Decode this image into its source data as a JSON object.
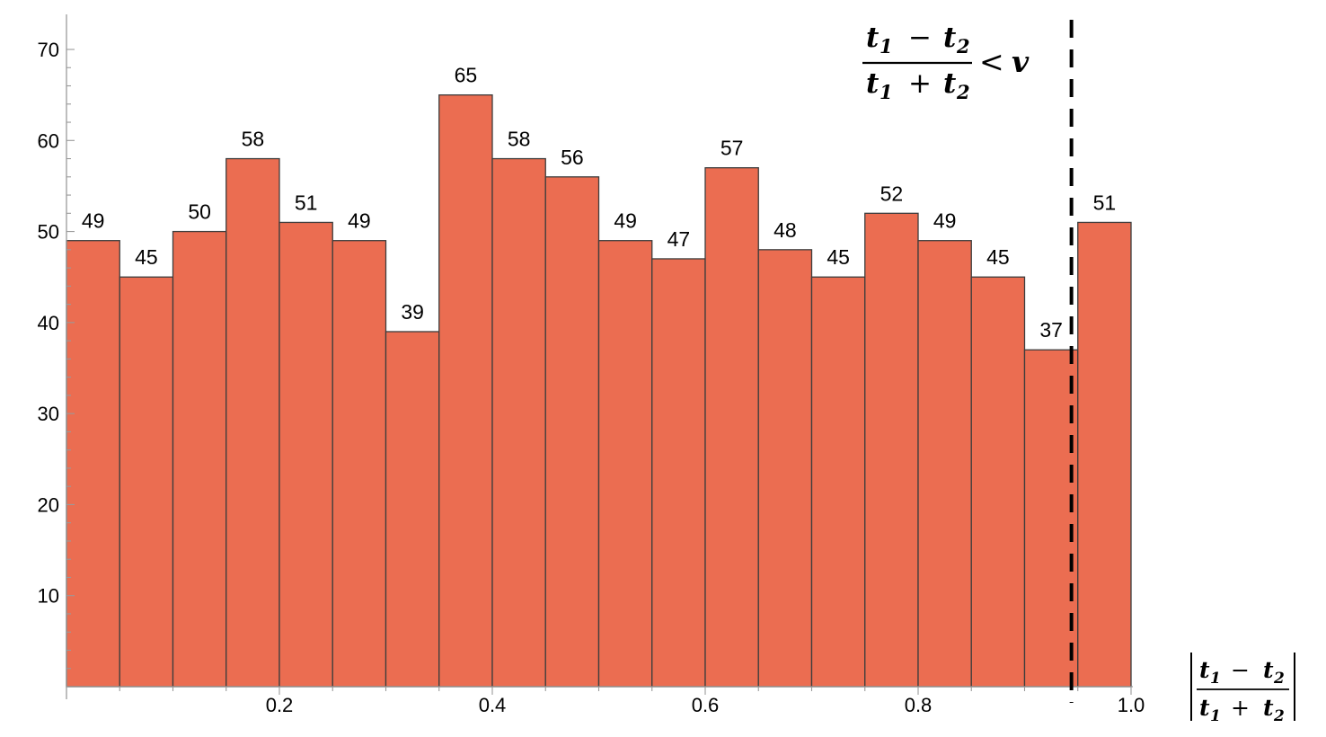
{
  "chart_data": {
    "type": "bar",
    "bins": [
      {
        "start": 0.0,
        "end": 0.05,
        "value": 49
      },
      {
        "start": 0.05,
        "end": 0.1,
        "value": 45
      },
      {
        "start": 0.1,
        "end": 0.15,
        "value": 50
      },
      {
        "start": 0.15,
        "end": 0.2,
        "value": 58
      },
      {
        "start": 0.2,
        "end": 0.25,
        "value": 51
      },
      {
        "start": 0.25,
        "end": 0.3,
        "value": 49
      },
      {
        "start": 0.3,
        "end": 0.35,
        "value": 39
      },
      {
        "start": 0.35,
        "end": 0.4,
        "value": 65
      },
      {
        "start": 0.4,
        "end": 0.45,
        "value": 58
      },
      {
        "start": 0.45,
        "end": 0.5,
        "value": 56
      },
      {
        "start": 0.5,
        "end": 0.55,
        "value": 49
      },
      {
        "start": 0.55,
        "end": 0.6,
        "value": 47
      },
      {
        "start": 0.6,
        "end": 0.65,
        "value": 57
      },
      {
        "start": 0.65,
        "end": 0.7,
        "value": 48
      },
      {
        "start": 0.7,
        "end": 0.75,
        "value": 45
      },
      {
        "start": 0.75,
        "end": 0.8,
        "value": 52
      },
      {
        "start": 0.8,
        "end": 0.85,
        "value": 49
      },
      {
        "start": 0.85,
        "end": 0.9,
        "value": 45
      },
      {
        "start": 0.9,
        "end": 0.95,
        "value": 37
      },
      {
        "start": 0.95,
        "end": 1.0,
        "value": 51
      }
    ],
    "xlim": [
      0,
      1.0
    ],
    "ylim": [
      0,
      70
    ],
    "x_ticks": [
      {
        "value": 0.2,
        "label": "0.2"
      },
      {
        "value": 0.4,
        "label": "0.4"
      },
      {
        "value": 0.6,
        "label": "0.6"
      },
      {
        "value": 0.8,
        "label": "0.8"
      },
      {
        "value": 1.0,
        "label": "1.0"
      }
    ],
    "y_ticks": [
      {
        "value": 10,
        "label": "10"
      },
      {
        "value": 20,
        "label": "20"
      },
      {
        "value": 30,
        "label": "30"
      },
      {
        "value": 40,
        "label": "40"
      },
      {
        "value": 50,
        "label": "50"
      },
      {
        "value": 60,
        "label": "60"
      },
      {
        "value": 70,
        "label": "70"
      }
    ],
    "x_minor_step": 0.05,
    "y_minor_step": 2,
    "threshold_line": {
      "x": 0.944,
      "style": "dashed"
    },
    "xlabel": {
      "num_t1": "t",
      "num_sub1": "1",
      "num_op": "−",
      "num_t2": "t",
      "num_sub2": "2",
      "den_t1": "t",
      "den_sub1": "1",
      "den_op": "+",
      "den_t2": "t",
      "den_sub2": "2"
    },
    "annotation": {
      "num_t1": "t",
      "num_sub1": "1",
      "num_op": "−",
      "num_t2": "t",
      "num_sub2": "2",
      "den_t1": "t",
      "den_sub1": "1",
      "den_op": "+",
      "den_t2": "t",
      "den_sub2": "2",
      "relation": "<",
      "rhs": "v"
    },
    "grid": false,
    "colors": {
      "bar_fill": "#EB6D51",
      "bar_stroke": "#3d3d3d",
      "axis": "#9a9a9a",
      "threshold": "#000000"
    }
  }
}
